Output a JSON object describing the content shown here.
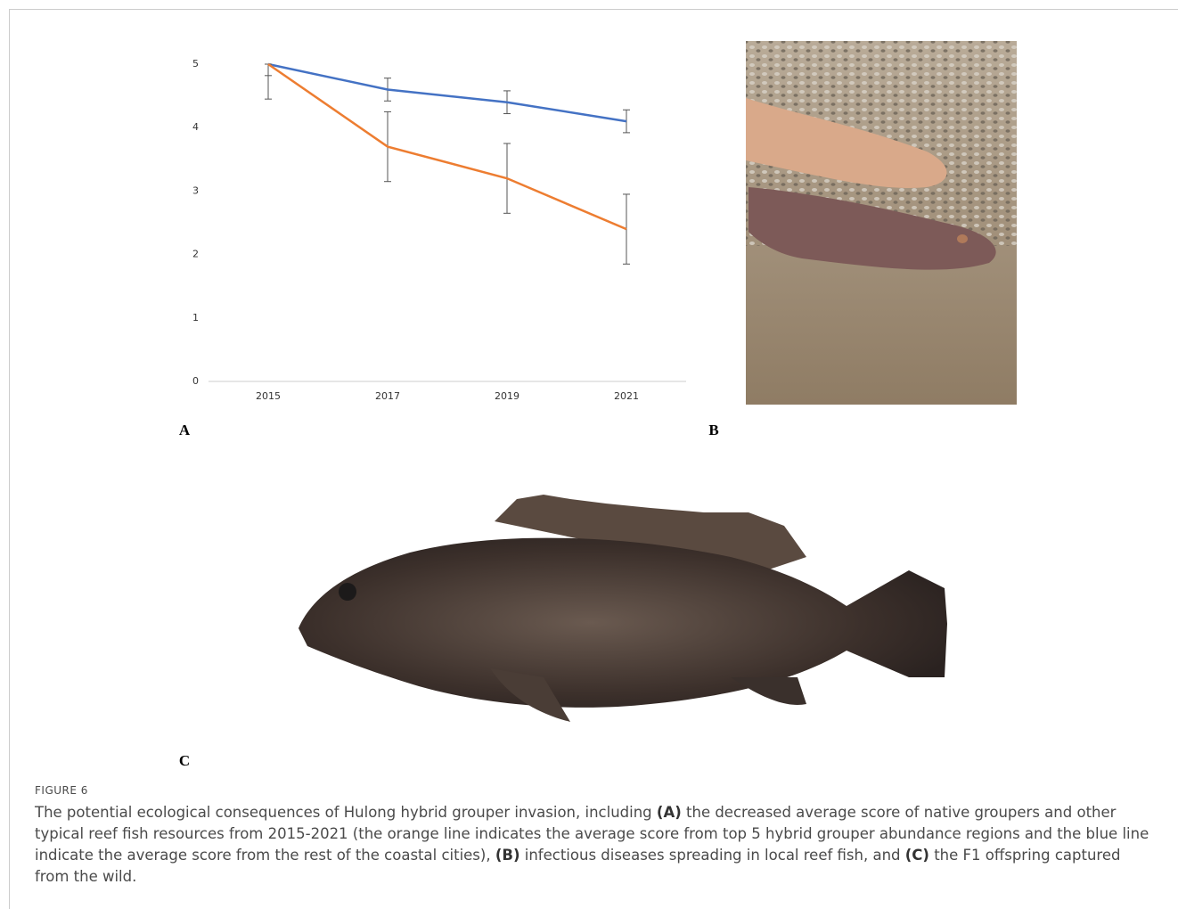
{
  "chart_data": {
    "type": "line",
    "categories": [
      "2015",
      "2017",
      "2019",
      "2021"
    ],
    "series": [
      {
        "color": "#4472c4",
        "values": [
          5,
          4.6,
          4.4,
          4.1
        ],
        "errors": [
          0.18,
          0.18,
          0.18,
          0.18
        ]
      },
      {
        "color": "#ed7d31",
        "values": [
          5,
          3.7,
          3.2,
          2.4
        ],
        "errors": [
          0.55,
          0.55,
          0.55,
          0.55
        ]
      }
    ],
    "ylim": [
      0,
      5
    ],
    "yticks": [
      0,
      1,
      2,
      3,
      4,
      5
    ],
    "grid": false
  },
  "panels": [
    "A",
    "B",
    "C"
  ],
  "caption": {
    "label": "FIGURE 6",
    "parts": [
      {
        "text": "The potential ecological consequences of Hulong hybrid grouper invasion, including ",
        "bold": false
      },
      {
        "text": "(A)",
        "bold": true
      },
      {
        "text": " the decreased average score of native groupers and other typical reef fish resources from 2015-2021 (the orange line indicates the average score from top 5 hybrid grouper abundance regions and the blue line indicate the average score from the rest of the coastal cities), ",
        "bold": false
      },
      {
        "text": "(B)",
        "bold": true
      },
      {
        "text": " infectious diseases spreading in local reef fish, and ",
        "bold": false
      },
      {
        "text": "(C)",
        "bold": true
      },
      {
        "text": " the F1 offspring captured from the wild.",
        "bold": false
      }
    ]
  }
}
